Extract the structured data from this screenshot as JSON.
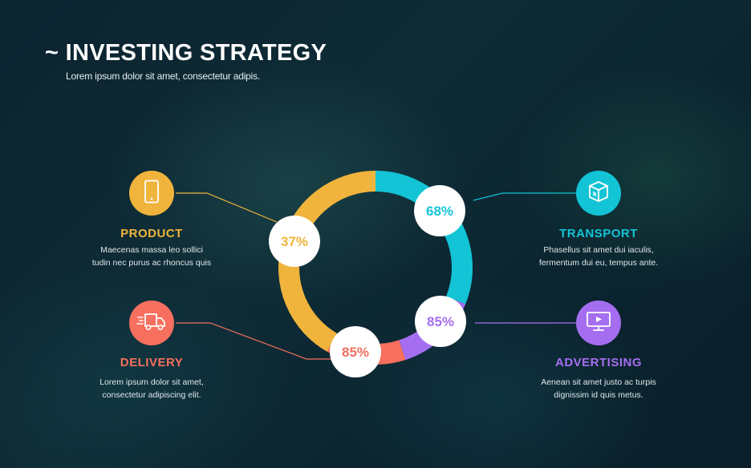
{
  "header": {
    "title": "~ INVESTING STRATEGY",
    "subtitle": "Lorem ipsum dolor sit amet, consectetur adipis."
  },
  "colors": {
    "product": "#f0b43c",
    "transport": "#12c4d6",
    "delivery": "#f76f5e",
    "advertising": "#a56ef0"
  },
  "items": [
    {
      "key": "product",
      "label": "PRODUCT",
      "desc_line1": "Maecenas massa leo sollici",
      "desc_line2": "tudin nec purus ac rhoncus quis",
      "percent": "37%",
      "icon": "smartphone-icon"
    },
    {
      "key": "transport",
      "label": "TRANSPORT",
      "desc_line1": "Phasellus sit amet dui iaculis,",
      "desc_line2": "fermentum dui eu, tempus ante.",
      "percent": "68%",
      "icon": "package-box-icon"
    },
    {
      "key": "delivery",
      "label": "DELIVERY",
      "desc_line1": "Lorem ipsum dolor sit amet,",
      "desc_line2": "consectetur adipiscing elit.",
      "percent": "85%",
      "icon": "delivery-truck-icon"
    },
    {
      "key": "advertising",
      "label": "ADVERTISING",
      "desc_line1": "Aenean sit amet justo ac turpis",
      "desc_line2": "dignissim id quis metus.",
      "percent": "85%",
      "icon": "monitor-play-icon"
    }
  ]
}
